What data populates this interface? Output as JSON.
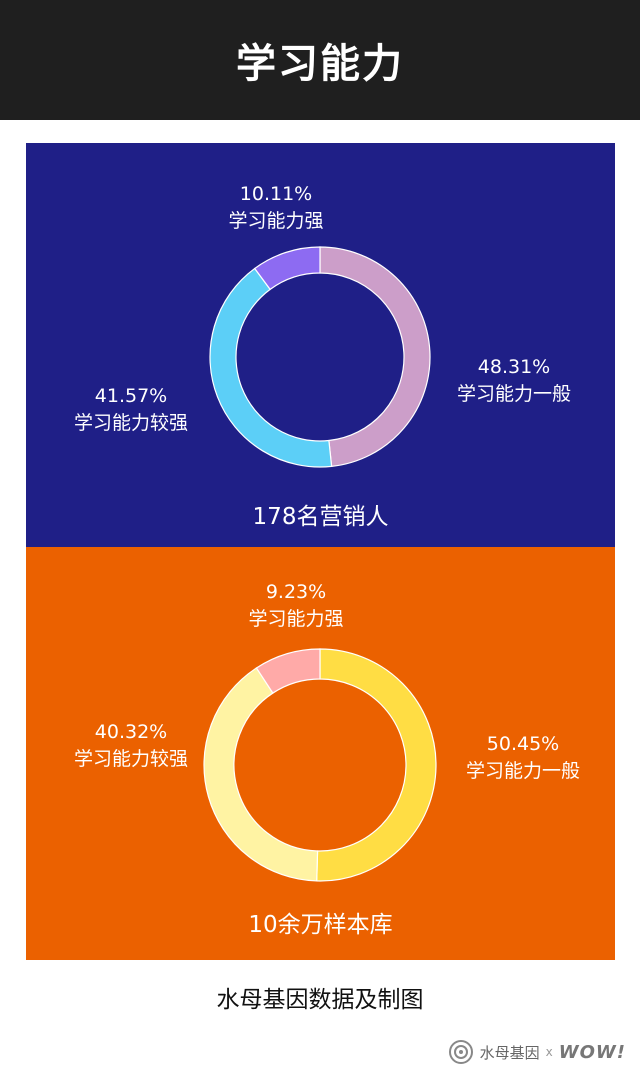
{
  "header": {
    "title": "学习能力"
  },
  "chart_data": [
    {
      "type": "pie",
      "caption": "178名营销人",
      "slices": [
        {
          "label": "学习能力一般",
          "value": 48.31,
          "display": "48.31%",
          "color": "#cc9ec9"
        },
        {
          "label": "学习能力较强",
          "value": 41.57,
          "display": "41.57%",
          "color": "#5ccff7"
        },
        {
          "label": "学习能力强",
          "value": 10.11,
          "display": "10.11%",
          "color": "#8d6bf2"
        }
      ]
    },
    {
      "type": "pie",
      "caption": "10余万样本库",
      "slices": [
        {
          "label": "学习能力一般",
          "value": 50.45,
          "display": "50.45%",
          "color": "#ffdd44"
        },
        {
          "label": "学习能力较强",
          "value": 40.32,
          "display": "40.32%",
          "color": "#fff3a3"
        },
        {
          "label": "学习能力强",
          "value": 9.23,
          "display": "9.23%",
          "color": "#ffaaa8"
        }
      ]
    }
  ],
  "source": "水母基因数据及制图",
  "footer": {
    "brand": "水母基因",
    "separator": "x",
    "partner": "WOW!"
  }
}
